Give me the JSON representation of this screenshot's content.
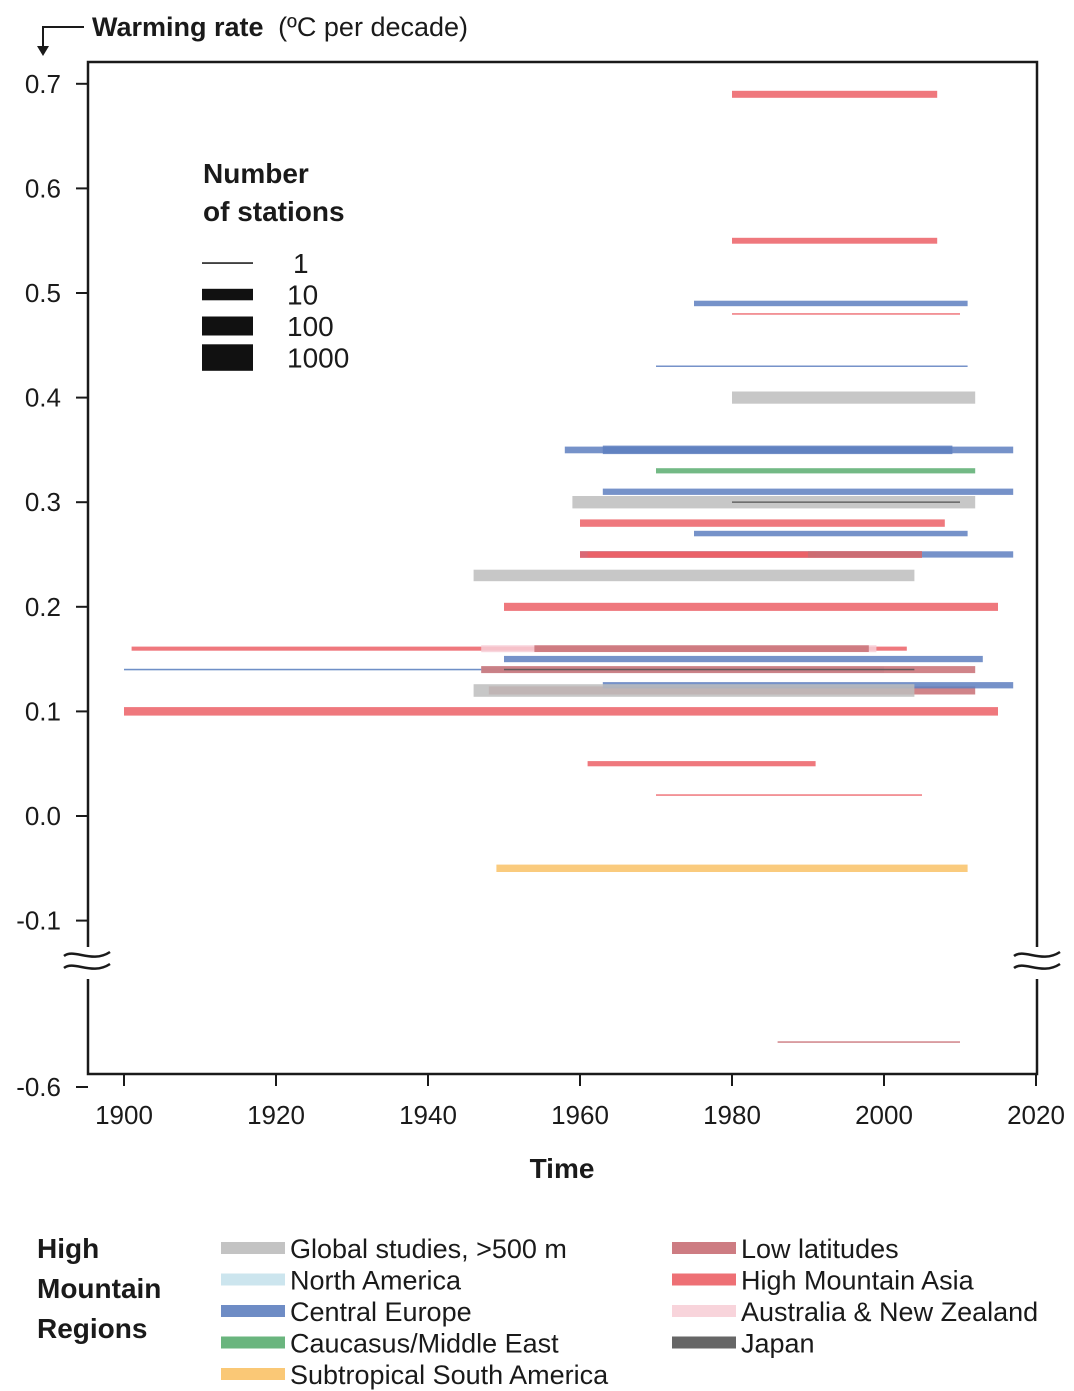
{
  "chart_data": {
    "type": "bar",
    "orientation": "horizontal-range",
    "ylabel_bold": "Warming rate",
    "ylabel_unit": "(ºC per decade)",
    "xlabel": "Time",
    "xlim": [
      1895,
      2020
    ],
    "x_ticks": [
      1900,
      1920,
      1940,
      1960,
      1980,
      2000,
      2020
    ],
    "y_ticks_upper": [
      "0.7",
      "0.6",
      "0.5",
      "0.4",
      "0.3",
      "0.2",
      "0.1",
      "0.0",
      "-0.1"
    ],
    "y_ticks_lower": [
      "-0.6"
    ],
    "ylim": [
      -0.7,
      0.72
    ],
    "axis_break": [
      -0.15,
      -0.55
    ],
    "grid": false,
    "stations_legend": {
      "title_line1": "Number",
      "title_line2": "of stations",
      "items": [
        {
          "label": "1",
          "stations": 1
        },
        {
          "label": "10",
          "stations": 10
        },
        {
          "label": "100",
          "stations": 100
        },
        {
          "label": "1000",
          "stations": 1000
        }
      ]
    },
    "regions_legend": {
      "title_line1": "High",
      "title_line2": "Mountain",
      "title_line3": "Regions",
      "items": [
        {
          "label": "Global studies, >500 m",
          "color": "#bdbdbd"
        },
        {
          "label": "North America",
          "color": "#c6e2ec"
        },
        {
          "label": "Central Europe",
          "color": "#5e7fbf"
        },
        {
          "label": "Caucasus/Middle East",
          "color": "#5aad70"
        },
        {
          "label": "Subtropical South America",
          "color": "#f9c267"
        },
        {
          "label": "Low latitudes",
          "color": "#c86e74"
        },
        {
          "label": "High Mountain Asia",
          "color": "#ec6066"
        },
        {
          "label": "Australia & New Zealand",
          "color": "#f7cfd7"
        },
        {
          "label": "Japan",
          "color": "#555555"
        }
      ]
    },
    "series": [
      {
        "region": "High Mountain Asia",
        "start": 1980,
        "end": 2007,
        "rate": 0.69,
        "stations": 30
      },
      {
        "region": "High Mountain Asia",
        "start": 1980,
        "end": 2007,
        "rate": 0.55,
        "stations": 15
      },
      {
        "region": "Central Europe",
        "start": 1975,
        "end": 2011,
        "rate": 0.49,
        "stations": 12
      },
      {
        "region": "High Mountain Asia",
        "start": 1980,
        "end": 2010,
        "rate": 0.48,
        "stations": 1
      },
      {
        "region": "Central Europe",
        "start": 1970,
        "end": 2011,
        "rate": 0.43,
        "stations": 1
      },
      {
        "region": "Global studies, >500 m",
        "start": 1980,
        "end": 2012,
        "rate": 0.4,
        "stations": 800
      },
      {
        "region": "Central Europe",
        "start": 1958,
        "end": 2017,
        "rate": 0.35,
        "stations": 25
      },
      {
        "region": "Central Europe",
        "start": 1963,
        "end": 2009,
        "rate": 0.35,
        "stations": 80
      },
      {
        "region": "Caucasus/Middle East",
        "start": 1970,
        "end": 2012,
        "rate": 0.33,
        "stations": 10
      },
      {
        "region": "Central Europe",
        "start": 1963,
        "end": 2017,
        "rate": 0.31,
        "stations": 20
      },
      {
        "region": "Global studies, >500 m",
        "start": 1959,
        "end": 2012,
        "rate": 0.3,
        "stations": 900
      },
      {
        "region": "Japan",
        "start": 1980,
        "end": 2010,
        "rate": 0.3,
        "stations": 1
      },
      {
        "region": "High Mountain Asia",
        "start": 1960,
        "end": 2008,
        "rate": 0.28,
        "stations": 40
      },
      {
        "region": "Central Europe",
        "start": 1975,
        "end": 2011,
        "rate": 0.27,
        "stations": 12
      },
      {
        "region": "Central Europe",
        "start": 1960,
        "end": 2017,
        "rate": 0.25,
        "stations": 20
      },
      {
        "region": "High Mountain Asia",
        "start": 1960,
        "end": 2005,
        "rate": 0.25,
        "stations": 25
      },
      {
        "region": "High Mountain Asia",
        "start": 1961,
        "end": 1991,
        "rate": 0.25,
        "stations": 10
      },
      {
        "region": "Low latitudes",
        "start": 1990,
        "end": 2005,
        "rate": 0.25,
        "stations": 20
      },
      {
        "region": "Global studies, >500 m",
        "start": 1946,
        "end": 2004,
        "rate": 0.23,
        "stations": 500
      },
      {
        "region": "High Mountain Asia",
        "start": 1950,
        "end": 2015,
        "rate": 0.2,
        "stations": 60
      },
      {
        "region": "High Mountain Asia",
        "start": 1901,
        "end": 2003,
        "rate": 0.16,
        "stations": 5
      },
      {
        "region": "Australia & New Zealand",
        "start": 1947,
        "end": 1999,
        "rate": 0.16,
        "stations": 30
      },
      {
        "region": "Low latitudes",
        "start": 1954,
        "end": 1998,
        "rate": 0.16,
        "stations": 25
      },
      {
        "region": "Central Europe",
        "start": 1950,
        "end": 2013,
        "rate": 0.15,
        "stations": 20
      },
      {
        "region": "North America",
        "start": 1900,
        "end": 1950,
        "rate": 0.14,
        "stations": 1
      },
      {
        "region": "Central Europe",
        "start": 1900,
        "end": 1950,
        "rate": 0.14,
        "stations": 1
      },
      {
        "region": "North America",
        "start": 1947,
        "end": 2000,
        "rate": 0.14,
        "stations": 20
      },
      {
        "region": "Low latitudes",
        "start": 1947,
        "end": 2012,
        "rate": 0.14,
        "stations": 30
      },
      {
        "region": "Japan",
        "start": 1950,
        "end": 2004,
        "rate": 0.14,
        "stations": 1
      },
      {
        "region": "Low latitudes",
        "start": 1948,
        "end": 2012,
        "rate": 0.12,
        "stations": 60
      },
      {
        "region": "Central Europe",
        "start": 1963,
        "end": 2017,
        "rate": 0.125,
        "stations": 20
      },
      {
        "region": "Global studies, >500 m",
        "start": 1946,
        "end": 2004,
        "rate": 0.12,
        "stations": 1000
      },
      {
        "region": "High Mountain Asia",
        "start": 1900,
        "end": 2015,
        "rate": 0.1,
        "stations": 80
      },
      {
        "region": "High Mountain Asia",
        "start": 1961,
        "end": 1991,
        "rate": 0.05,
        "stations": 10
      },
      {
        "region": "High Mountain Asia",
        "start": 1970,
        "end": 2005,
        "rate": 0.02,
        "stations": 1
      },
      {
        "region": "Subtropical South America",
        "start": 1949,
        "end": 2011,
        "rate": -0.05,
        "stations": 40
      },
      {
        "region": "Low latitudes",
        "start": 1986,
        "end": 2010,
        "rate": -0.65,
        "stations": 1
      }
    ]
  }
}
